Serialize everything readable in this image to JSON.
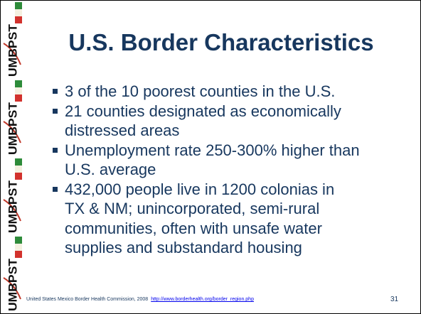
{
  "sidebar_logo": "UMBPST",
  "title": "U.S. Border Characteristics",
  "bullets": [
    {
      "lines": [
        "3 of the 10 poorest counties in the U.S."
      ]
    },
    {
      "lines": [
        "21 counties designated as economically",
        "distressed areas"
      ]
    },
    {
      "lines": [
        "Unemployment rate 250-300% higher than",
        "U.S. average"
      ]
    },
    {
      "lines": [
        "432,000 people live in 1200 colonias in",
        "TX & NM; unincorporated, semi-rural",
        "communities, often with unsafe water",
        "supplies and substandard housing"
      ]
    }
  ],
  "footer": {
    "citation": "United States Mexico Border Health Commission, 2008",
    "link": "http://www.borderhealth.org/border_region.php",
    "page_number": "31"
  }
}
